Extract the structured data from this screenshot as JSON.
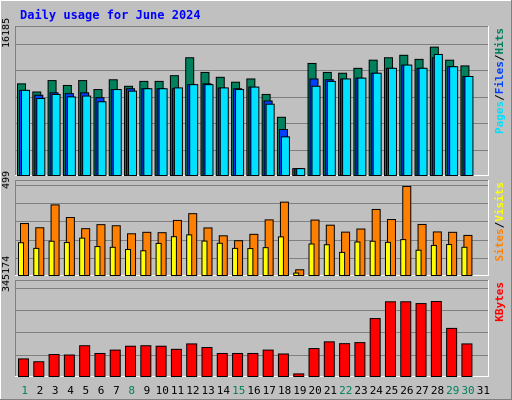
{
  "title": "Daily usage for June 2024",
  "colors": {
    "background": "#c0c0c0",
    "title": "#0000ff",
    "hits": "#00805c",
    "files": "#0040ff",
    "pages": "#00e0ff",
    "visits": "#ff8000",
    "sites": "#ffff00",
    "kbytes": "#ff0000"
  },
  "chart_data": [
    {
      "type": "bar",
      "title": "Daily usage for June 2024",
      "categories": [
        "1",
        "2",
        "3",
        "4",
        "5",
        "6",
        "7",
        "8",
        "9",
        "10",
        "11",
        "12",
        "13",
        "14",
        "15",
        "16",
        "17",
        "18",
        "19",
        "20",
        "21",
        "22",
        "23",
        "24",
        "25",
        "26",
        "27",
        "28",
        "29",
        "30",
        "31"
      ],
      "y_max_label": "16185",
      "ylim": [
        0,
        16185
      ],
      "right_label_parts": [
        "Pages",
        "/",
        "Files",
        "/",
        "Hits"
      ],
      "series": [
        {
          "name": "Hits",
          "values": [
            11300,
            10300,
            11700,
            11100,
            11700,
            10600,
            11800,
            11000,
            11600,
            11600,
            12300,
            14500,
            12700,
            12100,
            11500,
            11900,
            10000,
            7200,
            900,
            13800,
            12700,
            12600,
            13200,
            14200,
            14500,
            14800,
            14300,
            15800,
            14200,
            13500,
            null
          ]
        },
        {
          "name": "Files",
          "values": [
            10500,
            9900,
            10200,
            10100,
            10200,
            9600,
            10600,
            10700,
            10700,
            10700,
            10700,
            11200,
            11300,
            10800,
            10700,
            10900,
            9200,
            5700,
            900,
            11900,
            11800,
            11900,
            12000,
            12600,
            13200,
            13600,
            13200,
            14500,
            13400,
            12200,
            null
          ]
        },
        {
          "name": "Pages",
          "values": [
            10500,
            9500,
            10000,
            9700,
            9800,
            9100,
            10600,
            10400,
            10700,
            10700,
            10800,
            11200,
            11200,
            10800,
            10600,
            10900,
            8800,
            4800,
            900,
            11000,
            11600,
            11900,
            12000,
            12600,
            13200,
            13600,
            13200,
            14900,
            13400,
            12200,
            null
          ]
        }
      ]
    },
    {
      "type": "bar",
      "categories": [
        "1",
        "2",
        "3",
        "4",
        "5",
        "6",
        "7",
        "8",
        "9",
        "10",
        "11",
        "12",
        "13",
        "14",
        "15",
        "16",
        "17",
        "18",
        "19",
        "20",
        "21",
        "22",
        "23",
        "24",
        "25",
        "26",
        "27",
        "28",
        "29",
        "30",
        "31"
      ],
      "y_max_label": "499",
      "ylim": [
        0,
        499
      ],
      "right_label_parts": [
        "Sites",
        "/",
        "Visits"
      ],
      "series": [
        {
          "name": "Visits",
          "values": [
            287,
            264,
            389,
            320,
            259,
            281,
            275,
            231,
            239,
            237,
            304,
            341,
            263,
            220,
            193,
            228,
            307,
            404,
            34,
            306,
            278,
            240,
            257,
            364,
            309,
            490,
            282,
            241,
            239,
            222,
            null
          ]
        },
        {
          "name": "Sites",
          "values": [
            182,
            151,
            190,
            183,
            207,
            161,
            157,
            145,
            138,
            178,
            215,
            225,
            191,
            179,
            151,
            150,
            155,
            214,
            16,
            175,
            171,
            129,
            186,
            190,
            184,
            199,
            141,
            167,
            172,
            157,
            null
          ]
        }
      ]
    },
    {
      "type": "bar",
      "categories": [
        "1",
        "2",
        "3",
        "4",
        "5",
        "6",
        "7",
        "8",
        "9",
        "10",
        "11",
        "12",
        "13",
        "14",
        "15",
        "16",
        "17",
        "18",
        "19",
        "20",
        "21",
        "22",
        "23",
        "24",
        "25",
        "26",
        "27",
        "28",
        "29",
        "30",
        "31"
      ],
      "y_max_label": "345174",
      "ylim": [
        0,
        345174
      ],
      "right_label_parts": [
        "KBytes"
      ],
      "series": [
        {
          "name": "KBytes",
          "values": [
            70000,
            59000,
            87000,
            85000,
            121000,
            91000,
            104000,
            119000,
            121000,
            119000,
            107000,
            128000,
            114000,
            91000,
            91000,
            91000,
            104000,
            89000,
            12000,
            110000,
            136000,
            129000,
            133000,
            226000,
            291000,
            291000,
            284000,
            292000,
            188000,
            128000,
            null
          ]
        }
      ]
    }
  ]
}
